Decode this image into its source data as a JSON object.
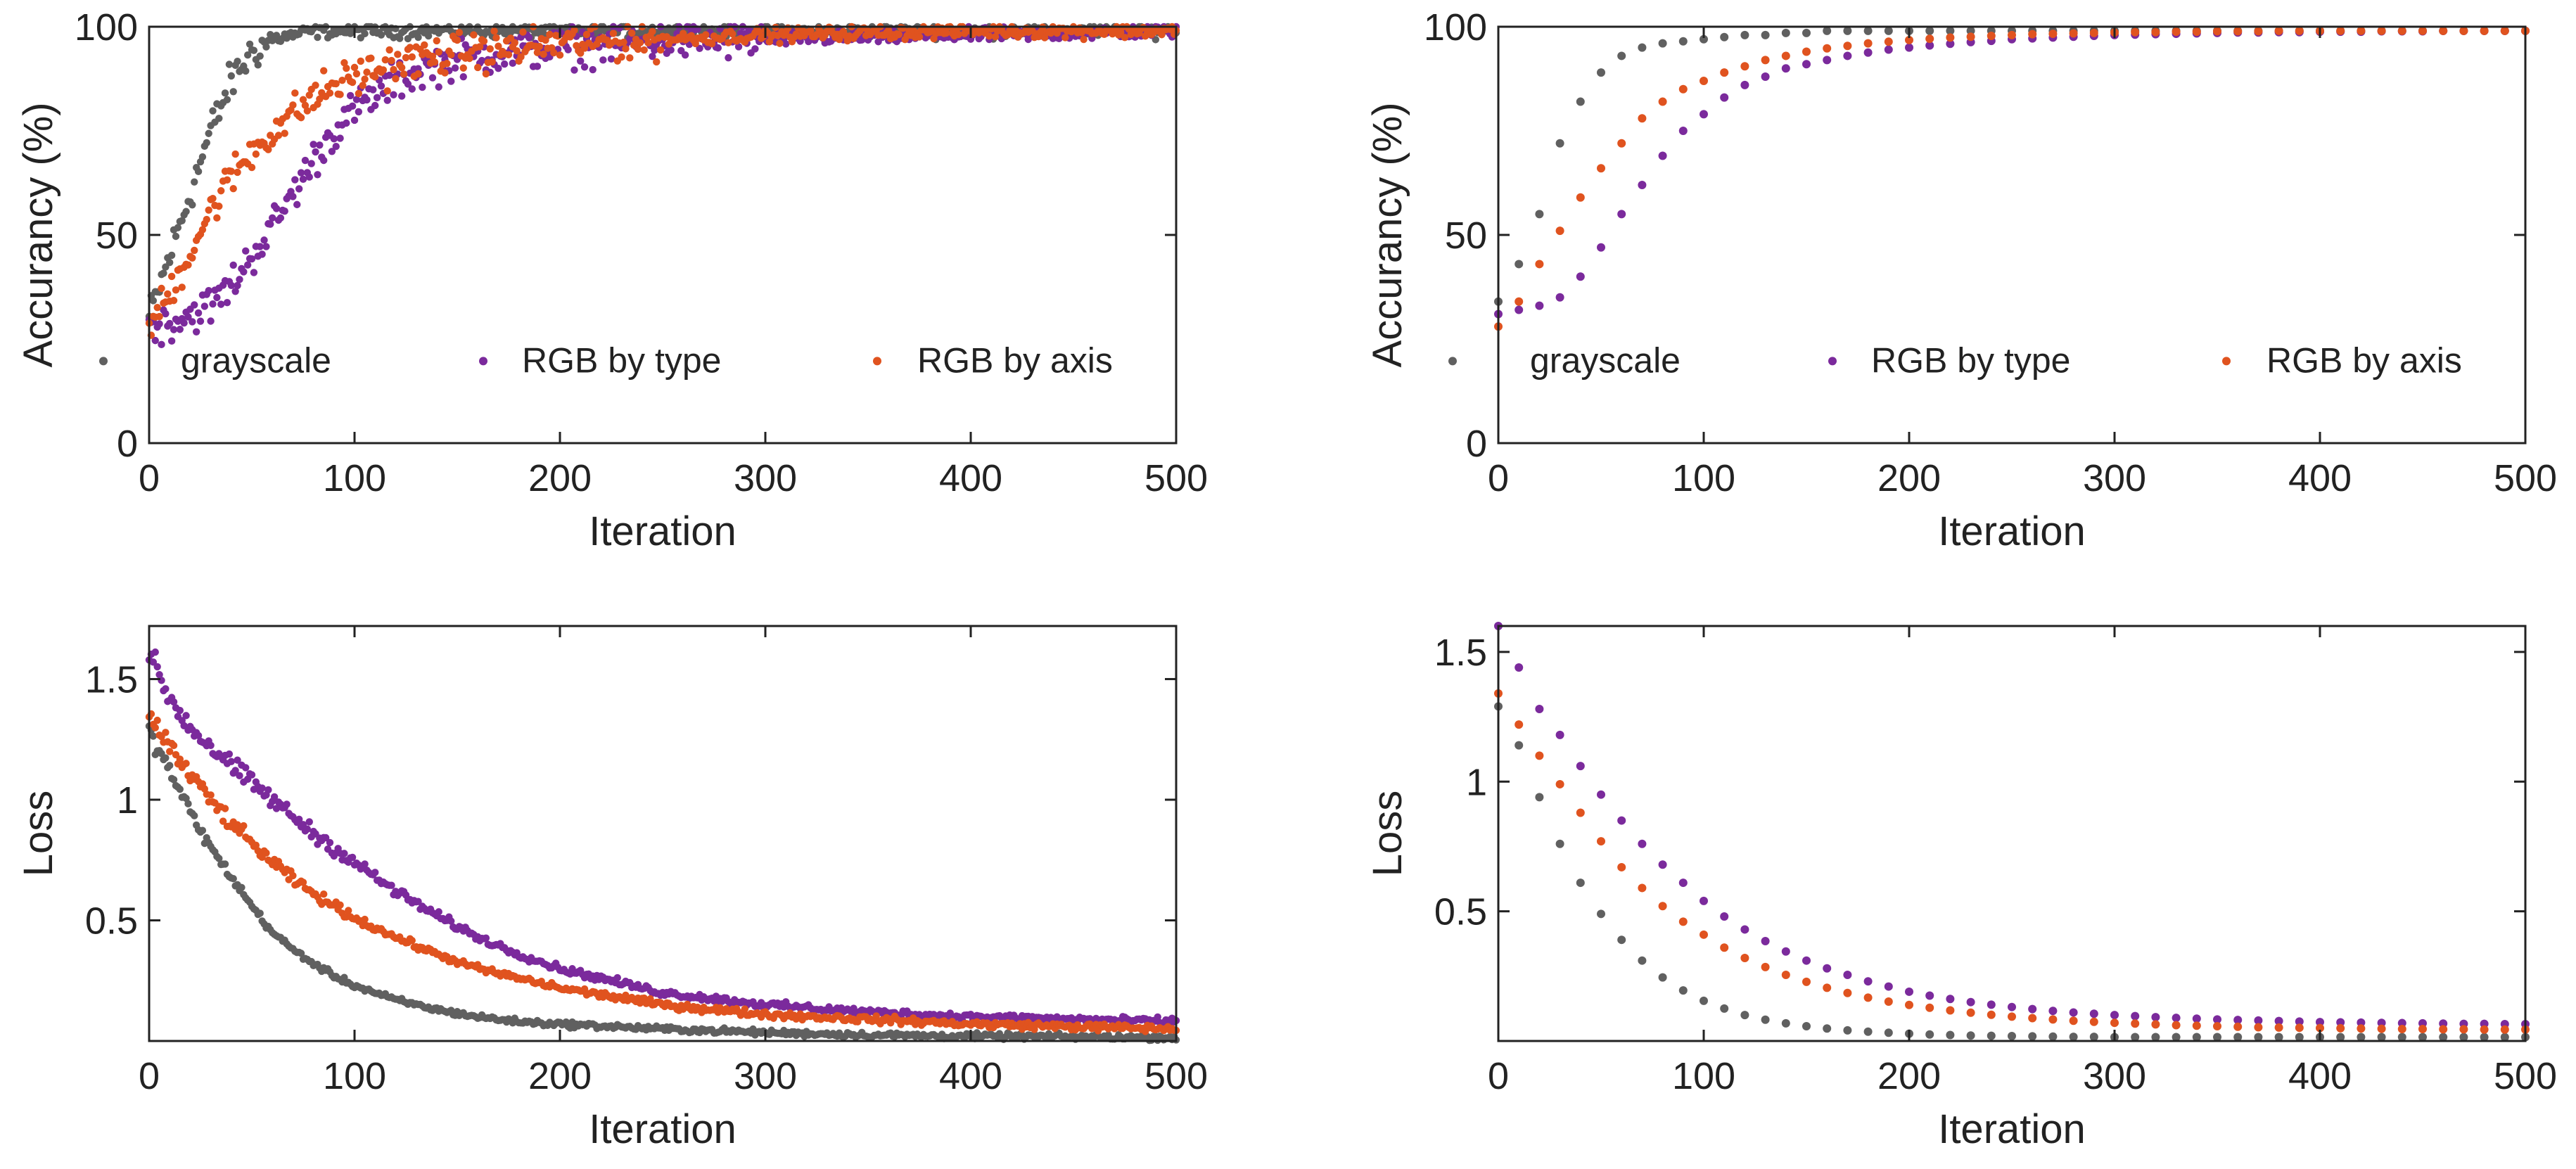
{
  "colors": {
    "grayscale": "#606060",
    "rgb_by_type": "#7b2a9c",
    "rgb_by_axis": "#e0531f"
  },
  "chart_data": [
    {
      "id": "acc-raw",
      "type": "scatter",
      "title": "",
      "xlabel": "Iteration",
      "ylabel": "Accurancy (%)",
      "xlim": [
        0,
        500
      ],
      "ylim": [
        0,
        100
      ],
      "xticks": [
        0,
        100,
        200,
        300,
        400,
        500
      ],
      "yticks": [
        0,
        50,
        100
      ],
      "ytick_labels": [
        "0",
        "50",
        "100"
      ],
      "legend": [
        "grayscale",
        "RGB by type",
        "RGB by axis"
      ],
      "legend_loc": "lower",
      "x": [
        0,
        10,
        20,
        30,
        40,
        50,
        60,
        70,
        80,
        90,
        100,
        120,
        140,
        160,
        180,
        200,
        250,
        300,
        350,
        400,
        450,
        500
      ],
      "series": [
        {
          "name": "grayscale",
          "color_key": "grayscale",
          "noise": 4,
          "values": [
            30,
            45,
            60,
            75,
            87,
            94,
            97,
            98,
            99,
            99,
            99,
            99,
            99,
            99,
            99,
            99,
            99,
            99,
            99,
            99,
            99,
            99
          ]
        },
        {
          "name": "RGB by type",
          "color_key": "rgb_by_type",
          "noise": 4,
          "values": [
            28,
            29,
            31,
            33,
            38,
            45,
            52,
            60,
            68,
            75,
            80,
            87,
            91,
            93,
            94,
            95,
            96.5,
            97,
            97.5,
            98,
            98.5,
            99
          ]
        },
        {
          "name": "RGB by axis",
          "color_key": "rgb_by_axis",
          "noise": 4,
          "values": [
            28,
            36,
            46,
            56,
            64,
            70,
            75,
            79,
            83,
            86,
            88,
            91,
            93,
            94,
            95,
            96,
            97,
            98,
            98.5,
            99,
            99,
            99
          ]
        }
      ]
    },
    {
      "id": "acc-smooth",
      "type": "scatter",
      "title": "",
      "xlabel": "Iteration",
      "ylabel": "Accurancy (%)",
      "xlim": [
        0,
        500
      ],
      "ylim": [
        0,
        100
      ],
      "xticks": [
        0,
        100,
        200,
        300,
        400,
        500
      ],
      "yticks": [
        0,
        50,
        100
      ],
      "ytick_labels": [
        "0",
        "50",
        "100"
      ],
      "legend": [
        "grayscale",
        "RGB by type",
        "RGB by axis"
      ],
      "legend_loc": "lower",
      "x": [
        0,
        10,
        20,
        30,
        40,
        50,
        60,
        70,
        80,
        90,
        100,
        110,
        120,
        130,
        140,
        150,
        160,
        170,
        180,
        190,
        200,
        210,
        220,
        230,
        240,
        250,
        260,
        270,
        280,
        290,
        300,
        310,
        320,
        330,
        340,
        350,
        360,
        370,
        380,
        390,
        400,
        410,
        420,
        430,
        440,
        450,
        460,
        470,
        480,
        490,
        500
      ],
      "series": [
        {
          "name": "grayscale",
          "color_key": "grayscale",
          "noise": 0,
          "values": [
            34,
            43,
            55,
            72,
            82,
            89,
            93,
            95,
            96,
            96.5,
            97,
            97.5,
            98,
            98,
            98.5,
            98.5,
            99,
            99,
            99,
            99,
            99,
            99,
            99,
            99,
            99,
            99,
            99,
            99,
            99,
            99,
            99,
            99,
            99,
            99,
            99,
            99,
            99,
            99,
            99,
            99,
            99,
            99,
            99,
            99,
            99,
            99,
            99,
            99,
            99,
            99,
            99
          ]
        },
        {
          "name": "RGB by type",
          "color_key": "rgb_by_type",
          "noise": 0,
          "values": [
            31,
            32,
            33,
            35,
            40,
            47,
            55,
            62,
            69,
            75,
            79,
            83,
            86,
            88,
            90,
            91,
            92,
            93,
            93.8,
            94.5,
            95,
            95.5,
            95.9,
            96.3,
            96.6,
            97,
            97.2,
            97.4,
            97.6,
            97.8,
            98,
            98.1,
            98.2,
            98.3,
            98.4,
            98.5,
            98.6,
            98.6,
            98.7,
            98.7,
            98.8,
            98.8,
            98.8,
            98.9,
            98.9,
            98.9,
            99,
            99,
            99,
            99,
            99
          ]
        },
        {
          "name": "RGB by axis",
          "color_key": "rgb_by_axis",
          "noise": 0,
          "values": [
            28,
            34,
            43,
            51,
            59,
            66,
            72,
            78,
            82,
            85,
            87,
            89,
            90.5,
            92,
            93,
            94,
            94.8,
            95.4,
            96,
            96.4,
            96.8,
            97.1,
            97.4,
            97.6,
            97.8,
            98,
            98.2,
            98.3,
            98.4,
            98.5,
            98.6,
            98.7,
            98.7,
            98.8,
            98.8,
            98.9,
            98.9,
            98.9,
            99,
            99,
            99,
            99,
            99,
            99,
            99,
            99,
            99,
            99,
            99,
            99,
            99
          ]
        }
      ]
    },
    {
      "id": "loss-raw",
      "type": "scatter",
      "title": "",
      "xlabel": "Iteration",
      "ylabel": "Loss",
      "xlim": [
        0,
        500
      ],
      "ylim": [
        0,
        1.72
      ],
      "xticks": [
        0,
        100,
        200,
        300,
        400,
        500
      ],
      "yticks": [
        0.5,
        1,
        1.5
      ],
      "ytick_labels": [
        "0.5",
        "1",
        "1.5"
      ],
      "legend": [],
      "x": [
        0,
        10,
        20,
        30,
        40,
        50,
        60,
        70,
        80,
        90,
        100,
        120,
        140,
        160,
        180,
        200,
        250,
        300,
        350,
        400,
        450,
        500
      ],
      "series": [
        {
          "name": "grayscale",
          "color_key": "grayscale",
          "noise": 0.04,
          "values": [
            1.28,
            1.12,
            0.95,
            0.8,
            0.68,
            0.56,
            0.45,
            0.38,
            0.32,
            0.27,
            0.23,
            0.17,
            0.13,
            0.1,
            0.08,
            0.07,
            0.05,
            0.035,
            0.025,
            0.02,
            0.018,
            0.015
          ]
        },
        {
          "name": "RGB by type",
          "color_key": "rgb_by_type",
          "noise": 0.05,
          "values": [
            1.6,
            1.42,
            1.3,
            1.22,
            1.14,
            1.07,
            1.0,
            0.93,
            0.86,
            0.8,
            0.74,
            0.62,
            0.52,
            0.43,
            0.36,
            0.3,
            0.2,
            0.15,
            0.12,
            0.1,
            0.09,
            0.08
          ]
        },
        {
          "name": "RGB by axis",
          "color_key": "rgb_by_axis",
          "noise": 0.05,
          "values": [
            1.36,
            1.22,
            1.1,
            1.0,
            0.9,
            0.82,
            0.74,
            0.67,
            0.61,
            0.56,
            0.51,
            0.43,
            0.36,
            0.3,
            0.26,
            0.22,
            0.15,
            0.11,
            0.09,
            0.07,
            0.06,
            0.05
          ]
        }
      ]
    },
    {
      "id": "loss-smooth",
      "type": "scatter",
      "title": "",
      "xlabel": "Iteration",
      "ylabel": "Loss",
      "xlim": [
        0,
        500
      ],
      "ylim": [
        0,
        1.6
      ],
      "xticks": [
        0,
        100,
        200,
        300,
        400,
        500
      ],
      "yticks": [
        0.5,
        1,
        1.5
      ],
      "ytick_labels": [
        "0.5",
        "1",
        "1.5"
      ],
      "legend": [],
      "x": [
        0,
        10,
        20,
        30,
        40,
        50,
        60,
        70,
        80,
        90,
        100,
        110,
        120,
        130,
        140,
        150,
        160,
        170,
        180,
        190,
        200,
        210,
        220,
        230,
        240,
        250,
        260,
        270,
        280,
        290,
        300,
        310,
        320,
        330,
        340,
        350,
        360,
        370,
        380,
        390,
        400,
        410,
        420,
        430,
        440,
        450,
        460,
        470,
        480,
        490,
        500
      ],
      "series": [
        {
          "name": "grayscale",
          "color_key": "grayscale",
          "noise": 0,
          "values": [
            1.29,
            1.14,
            0.94,
            0.76,
            0.61,
            0.49,
            0.39,
            0.31,
            0.245,
            0.195,
            0.155,
            0.125,
            0.1,
            0.082,
            0.068,
            0.057,
            0.048,
            0.041,
            0.036,
            0.032,
            0.028,
            0.025,
            0.023,
            0.021,
            0.02,
            0.019,
            0.018,
            0.017,
            0.016,
            0.016,
            0.015,
            0.015,
            0.015,
            0.015,
            0.015,
            0.015,
            0.015,
            0.015,
            0.015,
            0.015,
            0.015,
            0.015,
            0.015,
            0.015,
            0.015,
            0.015,
            0.015,
            0.015,
            0.015,
            0.015,
            0.015
          ]
        },
        {
          "name": "RGB by type",
          "color_key": "rgb_by_type",
          "noise": 0,
          "values": [
            1.6,
            1.44,
            1.28,
            1.18,
            1.06,
            0.95,
            0.85,
            0.76,
            0.68,
            0.61,
            0.54,
            0.48,
            0.43,
            0.385,
            0.345,
            0.31,
            0.28,
            0.255,
            0.23,
            0.21,
            0.19,
            0.175,
            0.162,
            0.15,
            0.14,
            0.131,
            0.123,
            0.116,
            0.11,
            0.105,
            0.1,
            0.096,
            0.092,
            0.089,
            0.086,
            0.083,
            0.081,
            0.079,
            0.077,
            0.075,
            0.073,
            0.072,
            0.071,
            0.07,
            0.069,
            0.068,
            0.067,
            0.066,
            0.066,
            0.065,
            0.065
          ]
        },
        {
          "name": "RGB by axis",
          "color_key": "rgb_by_axis",
          "noise": 0,
          "values": [
            1.34,
            1.22,
            1.1,
            0.99,
            0.88,
            0.77,
            0.67,
            0.59,
            0.52,
            0.46,
            0.41,
            0.36,
            0.32,
            0.285,
            0.255,
            0.228,
            0.205,
            0.185,
            0.167,
            0.152,
            0.139,
            0.128,
            0.118,
            0.109,
            0.101,
            0.094,
            0.088,
            0.083,
            0.078,
            0.074,
            0.07,
            0.067,
            0.064,
            0.061,
            0.059,
            0.057,
            0.055,
            0.053,
            0.052,
            0.051,
            0.05,
            0.049,
            0.048,
            0.047,
            0.046,
            0.046,
            0.045,
            0.045,
            0.044,
            0.044,
            0.044
          ]
        }
      ]
    }
  ]
}
